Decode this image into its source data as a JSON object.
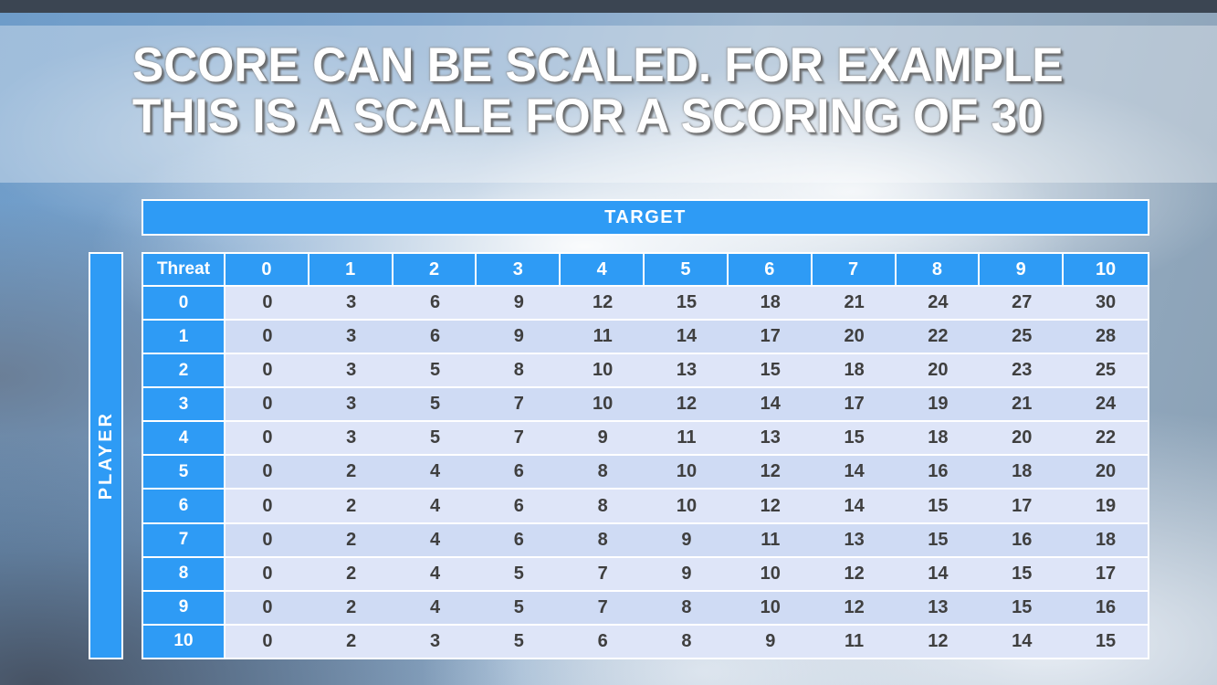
{
  "title": {
    "line1": "SCORE CAN BE SCALED. FOR EXAMPLE",
    "line2": "THIS IS A SCALE FOR A SCORING OF 30"
  },
  "table": {
    "target_label": "TARGET",
    "player_label": "PLAYER",
    "corner_label": "Threat",
    "col_headers": [
      "0",
      "1",
      "2",
      "3",
      "4",
      "5",
      "6",
      "7",
      "8",
      "9",
      "10"
    ],
    "rows": [
      {
        "header": "0",
        "values": [
          0,
          3,
          6,
          9,
          12,
          15,
          18,
          21,
          24,
          27,
          30
        ]
      },
      {
        "header": "1",
        "values": [
          0,
          3,
          6,
          9,
          11,
          14,
          17,
          20,
          22,
          25,
          28
        ]
      },
      {
        "header": "2",
        "values": [
          0,
          3,
          5,
          8,
          10,
          13,
          15,
          18,
          20,
          23,
          25
        ]
      },
      {
        "header": "3",
        "values": [
          0,
          3,
          5,
          7,
          10,
          12,
          14,
          17,
          19,
          21,
          24
        ]
      },
      {
        "header": "4",
        "values": [
          0,
          3,
          5,
          7,
          9,
          11,
          13,
          15,
          18,
          20,
          22
        ]
      },
      {
        "header": "5",
        "values": [
          0,
          2,
          4,
          6,
          8,
          10,
          12,
          14,
          16,
          18,
          20
        ]
      },
      {
        "header": "6",
        "values": [
          0,
          2,
          4,
          6,
          8,
          10,
          12,
          14,
          15,
          17,
          19
        ]
      },
      {
        "header": "7",
        "values": [
          0,
          2,
          4,
          6,
          8,
          9,
          11,
          13,
          15,
          16,
          18
        ]
      },
      {
        "header": "8",
        "values": [
          0,
          2,
          4,
          5,
          7,
          9,
          10,
          12,
          14,
          15,
          17
        ]
      },
      {
        "header": "9",
        "values": [
          0,
          2,
          4,
          5,
          7,
          8,
          10,
          12,
          13,
          15,
          16
        ]
      },
      {
        "header": "10",
        "values": [
          0,
          2,
          3,
          5,
          6,
          8,
          9,
          11,
          12,
          14,
          15
        ]
      }
    ]
  },
  "colors": {
    "accent_blue": "#2e9bf5",
    "band_light": "#dee5f8",
    "band_dark": "#cfdbf4",
    "top_bar": "#3b4552",
    "cell_text": "#3f3f3f",
    "title_text": "#ffffff"
  }
}
